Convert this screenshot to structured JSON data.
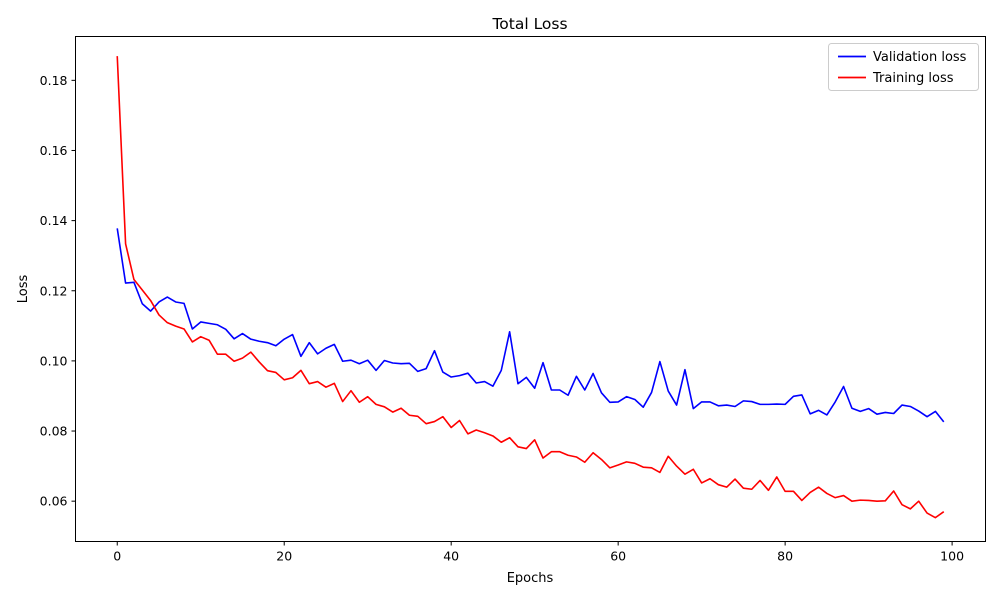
{
  "chart_data": {
    "type": "line",
    "title": "Total Loss",
    "xlabel": "Epochs",
    "ylabel": "Loss",
    "xlim": [
      -5,
      104
    ],
    "ylim": [
      0.0485,
      0.1925
    ],
    "xticks": [
      0,
      20,
      40,
      60,
      80,
      100
    ],
    "yticks": [
      0.06,
      0.08,
      0.1,
      0.12,
      0.14,
      0.16,
      0.18
    ],
    "ytick_labels": [
      "0.06",
      "0.08",
      "0.10",
      "0.12",
      "0.14",
      "0.16",
      "0.18"
    ],
    "grid": false,
    "legend_position": "top-right",
    "series": [
      {
        "name": "Validation loss",
        "color": "#0000ff",
        "values": [
          0.1378,
          0.1222,
          0.1224,
          0.1163,
          0.1142,
          0.1168,
          0.1182,
          0.1168,
          0.1164,
          0.1091,
          0.1111,
          0.1107,
          0.1103,
          0.109,
          0.1063,
          0.1078,
          0.1062,
          0.1056,
          0.1052,
          0.1043,
          0.1062,
          0.1075,
          0.1013,
          0.1052,
          0.102,
          0.1036,
          0.1047,
          0.0999,
          0.1002,
          0.0992,
          0.1002,
          0.0973,
          0.1001,
          0.0994,
          0.0992,
          0.0993,
          0.097,
          0.0978,
          0.1029,
          0.0968,
          0.0954,
          0.0958,
          0.0965,
          0.0937,
          0.0941,
          0.0928,
          0.0973,
          0.1083,
          0.0935,
          0.0953,
          0.0922,
          0.0995,
          0.0917,
          0.0917,
          0.0902,
          0.0956,
          0.0917,
          0.0964,
          0.0909,
          0.0882,
          0.0883,
          0.0898,
          0.089,
          0.0868,
          0.091,
          0.0998,
          0.0914,
          0.0874,
          0.0975,
          0.0864,
          0.0883,
          0.0883,
          0.0872,
          0.0874,
          0.087,
          0.0886,
          0.0884,
          0.0876,
          0.0876,
          0.0877,
          0.0876,
          0.0899,
          0.0903,
          0.0849,
          0.0859,
          0.0846,
          0.0883,
          0.0927,
          0.0865,
          0.0856,
          0.0864,
          0.0848,
          0.0853,
          0.085,
          0.0874,
          0.087,
          0.0857,
          0.0841,
          0.0856,
          0.0826
        ]
      },
      {
        "name": "Training loss",
        "color": "#ff0000",
        "values": [
          0.1869,
          0.1334,
          0.1232,
          0.1202,
          0.1172,
          0.1131,
          0.1109,
          0.1099,
          0.1091,
          0.1054,
          0.1069,
          0.1059,
          0.1019,
          0.1019,
          0.0999,
          0.1008,
          0.1025,
          0.0997,
          0.0972,
          0.0967,
          0.0946,
          0.0952,
          0.0973,
          0.0935,
          0.0941,
          0.0925,
          0.0936,
          0.0884,
          0.0915,
          0.0882,
          0.0898,
          0.0876,
          0.0869,
          0.0854,
          0.0865,
          0.0845,
          0.0842,
          0.0821,
          0.0827,
          0.0841,
          0.081,
          0.083,
          0.0792,
          0.0803,
          0.0795,
          0.0786,
          0.0768,
          0.0781,
          0.0755,
          0.075,
          0.0775,
          0.0723,
          0.0741,
          0.0741,
          0.0731,
          0.0726,
          0.0711,
          0.0738,
          0.0719,
          0.0695,
          0.0703,
          0.0712,
          0.0708,
          0.0697,
          0.0695,
          0.0682,
          0.0728,
          0.07,
          0.0677,
          0.0691,
          0.0652,
          0.0664,
          0.0647,
          0.064,
          0.0663,
          0.0637,
          0.0634,
          0.0659,
          0.0631,
          0.0669,
          0.0628,
          0.0628,
          0.0602,
          0.0625,
          0.064,
          0.0622,
          0.061,
          0.0616,
          0.06,
          0.0603,
          0.0602,
          0.06,
          0.0601,
          0.0629,
          0.059,
          0.0578,
          0.06,
          0.0566,
          0.0553,
          0.057
        ]
      }
    ]
  }
}
